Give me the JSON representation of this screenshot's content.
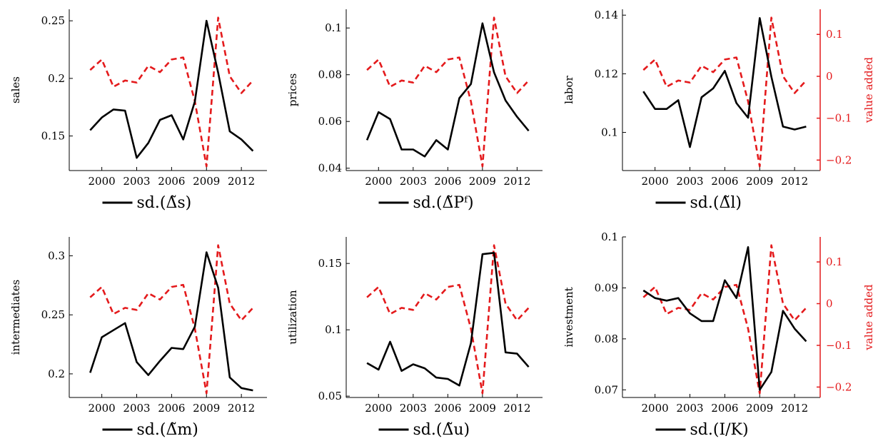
{
  "colors": {
    "primary": "#000000",
    "secondary": "#e41a1c"
  },
  "chart_data": [
    {
      "type": "line",
      "legend": "sd.(Δ̃s)",
      "ylabel": "sales",
      "y2label": "",
      "ylim": [
        0.12,
        0.26
      ],
      "yticks": [
        0.15,
        0.2,
        0.25
      ],
      "ytick_labels": [
        "0.15",
        "0.2",
        "0.25"
      ],
      "xticks": [
        2000,
        2003,
        2006,
        2009,
        2012
      ],
      "xtick_labels": [
        "2000",
        "2003",
        "2006",
        "2009",
        "2012"
      ],
      "y2lim": [
        -0.225,
        0.16
      ],
      "series": [
        {
          "x": [
            1999,
            2000,
            2001,
            2002,
            2003,
            2004,
            2005,
            2006,
            2007,
            2008,
            2009,
            2010,
            2011,
            2012,
            2013
          ],
          "values": [
            0.155,
            0.166,
            0.173,
            0.172,
            0.131,
            0.144,
            0.164,
            0.168,
            0.147,
            0.18,
            0.25,
            0.205,
            0.154,
            0.147,
            0.137
          ]
        },
        {
          "x": [
            1999,
            2000,
            2001,
            2002,
            2003,
            2004,
            2005,
            2006,
            2007,
            2008,
            2009,
            2010,
            2011,
            2012,
            2013
          ],
          "values": [
            0.015,
            0.04,
            -0.025,
            -0.01,
            -0.015,
            0.025,
            0.01,
            0.04,
            0.045,
            -0.06,
            -0.215,
            0.14,
            0.0,
            -0.04,
            -0.01
          ]
        }
      ]
    },
    {
      "type": "line",
      "legend": "sd.(Δ̃Pᶠ)",
      "ylabel": "prices",
      "y2label": "",
      "ylim": [
        0.039,
        0.108
      ],
      "yticks": [
        0.04,
        0.06,
        0.08,
        0.1
      ],
      "ytick_labels": [
        "0.04",
        "0.06",
        "0.08",
        "0.1"
      ],
      "xticks": [
        2000,
        2003,
        2006,
        2009,
        2012
      ],
      "xtick_labels": [
        "2000",
        "2003",
        "2006",
        "2009",
        "2012"
      ],
      "y2lim": [
        -0.225,
        0.16
      ],
      "series": [
        {
          "x": [
            1999,
            2000,
            2001,
            2002,
            2003,
            2004,
            2005,
            2006,
            2007,
            2008,
            2009,
            2010,
            2011,
            2012,
            2013
          ],
          "values": [
            0.052,
            0.064,
            0.061,
            0.048,
            0.048,
            0.045,
            0.052,
            0.048,
            0.07,
            0.076,
            0.102,
            0.081,
            0.069,
            0.062,
            0.056
          ]
        },
        {
          "x": [
            1999,
            2000,
            2001,
            2002,
            2003,
            2004,
            2005,
            2006,
            2007,
            2008,
            2009,
            2010,
            2011,
            2012,
            2013
          ],
          "values": [
            0.015,
            0.04,
            -0.025,
            -0.01,
            -0.015,
            0.025,
            0.01,
            0.04,
            0.045,
            -0.06,
            -0.215,
            0.14,
            0.0,
            -0.04,
            -0.01
          ]
        }
      ]
    },
    {
      "type": "line",
      "legend": "sd.(Δ̃l)",
      "ylabel": "labor",
      "y2label": "value added",
      "ylim": [
        0.087,
        0.142
      ],
      "yticks": [
        0.1,
        0.12,
        0.14
      ],
      "ytick_labels": [
        "0.1",
        "0.12",
        "0.14"
      ],
      "xticks": [
        2000,
        2003,
        2006,
        2009,
        2012
      ],
      "xtick_labels": [
        "2000",
        "2003",
        "2006",
        "2009",
        "2012"
      ],
      "y2lim": [
        -0.225,
        0.16
      ],
      "y2ticks": [
        0.1,
        0,
        -0.1,
        -0.2
      ],
      "y2tick_labels": [
        "0.1",
        "0",
        "−0.1",
        "−0.2"
      ],
      "series": [
        {
          "x": [
            1999,
            2000,
            2001,
            2002,
            2003,
            2004,
            2005,
            2006,
            2007,
            2008,
            2009,
            2010,
            2011,
            2012,
            2013
          ],
          "values": [
            0.114,
            0.108,
            0.108,
            0.111,
            0.095,
            0.112,
            0.115,
            0.121,
            0.11,
            0.105,
            0.139,
            0.119,
            0.102,
            0.101,
            0.102
          ]
        },
        {
          "x": [
            1999,
            2000,
            2001,
            2002,
            2003,
            2004,
            2005,
            2006,
            2007,
            2008,
            2009,
            2010,
            2011,
            2012,
            2013
          ],
          "values": [
            0.015,
            0.04,
            -0.025,
            -0.01,
            -0.015,
            0.025,
            0.01,
            0.04,
            0.045,
            -0.06,
            -0.215,
            0.14,
            0.0,
            -0.04,
            -0.01
          ]
        }
      ]
    },
    {
      "type": "line",
      "legend": "sd.(Δ̃m)",
      "ylabel": "intermediates",
      "y2label": "",
      "ylim": [
        0.18,
        0.316
      ],
      "yticks": [
        0.2,
        0.25,
        0.3
      ],
      "ytick_labels": [
        "0.2",
        "0.25",
        "0.3"
      ],
      "xticks": [
        2000,
        2003,
        2006,
        2009,
        2012
      ],
      "xtick_labels": [
        "2000",
        "2003",
        "2006",
        "2009",
        "2012"
      ],
      "y2lim": [
        -0.225,
        0.16
      ],
      "series": [
        {
          "x": [
            1999,
            2000,
            2001,
            2002,
            2003,
            2004,
            2005,
            2006,
            2007,
            2008,
            2009,
            2010,
            2011,
            2012,
            2013
          ],
          "values": [
            0.201,
            0.231,
            0.237,
            0.243,
            0.21,
            0.199,
            0.211,
            0.222,
            0.221,
            0.24,
            0.303,
            0.273,
            0.197,
            0.188,
            0.186
          ]
        },
        {
          "x": [
            1999,
            2000,
            2001,
            2002,
            2003,
            2004,
            2005,
            2006,
            2007,
            2008,
            2009,
            2010,
            2011,
            2012,
            2013
          ],
          "values": [
            0.015,
            0.04,
            -0.025,
            -0.01,
            -0.015,
            0.025,
            0.01,
            0.04,
            0.045,
            -0.06,
            -0.215,
            0.14,
            0.0,
            -0.04,
            -0.01
          ]
        }
      ]
    },
    {
      "type": "line",
      "legend": "sd.(Δ̃u)",
      "ylabel": "utilization",
      "y2label": "",
      "ylim": [
        0.049,
        0.17
      ],
      "yticks": [
        0.05,
        0.1,
        0.15
      ],
      "ytick_labels": [
        "0.05",
        "0.1",
        "0.15"
      ],
      "xticks": [
        2000,
        2003,
        2006,
        2009,
        2012
      ],
      "xtick_labels": [
        "2000",
        "2003",
        "2006",
        "2009",
        "2012"
      ],
      "y2lim": [
        -0.225,
        0.16
      ],
      "series": [
        {
          "x": [
            1999,
            2000,
            2001,
            2002,
            2003,
            2004,
            2005,
            2006,
            2007,
            2008,
            2009,
            2010,
            2011,
            2012,
            2013
          ],
          "values": [
            0.075,
            0.07,
            0.091,
            0.069,
            0.074,
            0.071,
            0.064,
            0.063,
            0.058,
            0.09,
            0.157,
            0.158,
            0.083,
            0.082,
            0.072
          ]
        },
        {
          "x": [
            1999,
            2000,
            2001,
            2002,
            2003,
            2004,
            2005,
            2006,
            2007,
            2008,
            2009,
            2010,
            2011,
            2012,
            2013
          ],
          "values": [
            0.015,
            0.04,
            -0.025,
            -0.01,
            -0.015,
            0.025,
            0.01,
            0.04,
            0.045,
            -0.06,
            -0.215,
            0.14,
            0.0,
            -0.04,
            -0.01
          ]
        }
      ]
    },
    {
      "type": "line",
      "legend": "sd.(I/K)",
      "ylabel": "investment",
      "y2label": "value added",
      "ylim": [
        0.0685,
        0.1
      ],
      "yticks": [
        0.07,
        0.08,
        0.09,
        0.1
      ],
      "ytick_labels": [
        "0.07",
        "0.08",
        "0.09",
        "0.1"
      ],
      "xticks": [
        2000,
        2003,
        2006,
        2009,
        2012
      ],
      "xtick_labels": [
        "2000",
        "2003",
        "2006",
        "2009",
        "2012"
      ],
      "y2lim": [
        -0.225,
        0.16
      ],
      "y2ticks": [
        0.1,
        0,
        -0.1,
        -0.2
      ],
      "y2tick_labels": [
        "0.1",
        "0",
        "−0.1",
        "−0.2"
      ],
      "series": [
        {
          "x": [
            1999,
            2000,
            2001,
            2002,
            2003,
            2004,
            2005,
            2006,
            2007,
            2008,
            2009,
            2010,
            2011,
            2012,
            2013
          ],
          "values": [
            0.0895,
            0.088,
            0.0875,
            0.088,
            0.085,
            0.0835,
            0.0835,
            0.0915,
            0.088,
            0.098,
            0.07,
            0.0735,
            0.0855,
            0.082,
            0.0795
          ]
        },
        {
          "x": [
            1999,
            2000,
            2001,
            2002,
            2003,
            2004,
            2005,
            2006,
            2007,
            2008,
            2009,
            2010,
            2011,
            2012,
            2013
          ],
          "values": [
            0.015,
            0.04,
            -0.025,
            -0.01,
            -0.015,
            0.025,
            0.01,
            0.04,
            0.045,
            -0.06,
            -0.215,
            0.14,
            0.0,
            -0.04,
            -0.01
          ]
        }
      ]
    }
  ]
}
